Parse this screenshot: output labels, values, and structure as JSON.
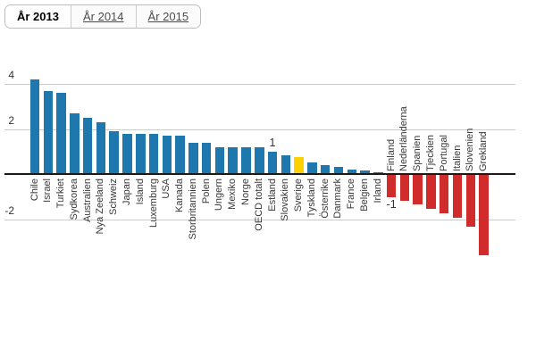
{
  "tabs": {
    "items": [
      {
        "label": "År 2013",
        "active": true
      },
      {
        "label": "År 2014",
        "active": false
      },
      {
        "label": "År 2015",
        "active": false
      }
    ]
  },
  "chart_data": {
    "type": "bar",
    "title": "",
    "xlabel": "",
    "ylabel": "",
    "categories": [
      "Chile",
      "Israel",
      "Turkiet",
      "Sydkorea",
      "Australien",
      "Nya Zeeland",
      "Schweiz",
      "Japan",
      "Island",
      "Luxemburg",
      "USA",
      "Kanada",
      "Storbritannien",
      "Polen",
      "Ungern",
      "Mexiko",
      "Norge",
      "OECD totalt",
      "Estland",
      "Slovakien",
      "Sverige",
      "Tyskland",
      "Österrike",
      "Danmark",
      "France",
      "Belgien",
      "Irland",
      "Finland",
      "Nederländerna",
      "Spanien",
      "Tjeckien",
      "Portugal",
      "Italien",
      "Slovenien",
      "Grekland"
    ],
    "values": [
      4.2,
      3.7,
      3.6,
      2.7,
      2.5,
      2.3,
      1.9,
      1.8,
      1.8,
      1.8,
      1.7,
      1.7,
      1.4,
      1.4,
      1.2,
      1.2,
      1.2,
      1.2,
      1.0,
      0.85,
      0.75,
      0.5,
      0.4,
      0.3,
      0.2,
      0.15,
      0.1,
      -1.0,
      -1.15,
      -1.3,
      -1.5,
      -1.7,
      -1.9,
      -2.3,
      -3.55
    ],
    "highlighted_category": "Sverige",
    "yticks": [
      {
        "value": 4,
        "label": "4"
      },
      {
        "value": 2,
        "label": "2"
      },
      {
        "value": -2,
        "label": "-2"
      }
    ],
    "ylim": [
      -3.8,
      4.4
    ],
    "grid": true,
    "legend_position": "none",
    "annotations": [
      {
        "text": "1",
        "category": "Estland",
        "position": "above"
      },
      {
        "text": "-1",
        "category": "Finland",
        "position": "below"
      }
    ],
    "colors": {
      "positive": "#1f78ad",
      "negative": "#d02c2c",
      "highlight": "#fdd000",
      "axis": "#1a1a1a",
      "grid": "#cccccc",
      "label": "#383838"
    }
  }
}
